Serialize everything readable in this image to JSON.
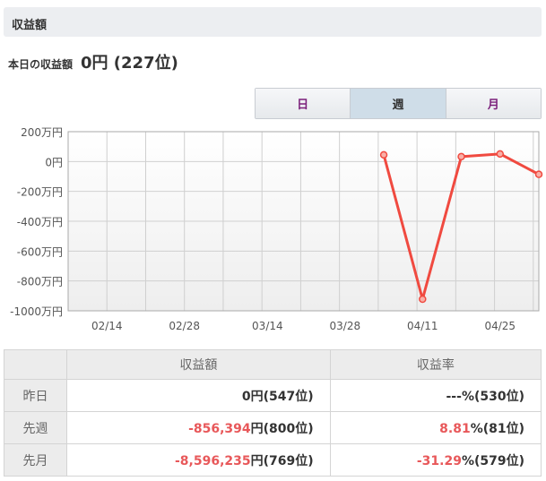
{
  "header": {
    "title": "収益額"
  },
  "today": {
    "label": "本日の収益額",
    "value": "0円 (227位)"
  },
  "tabs": [
    {
      "label": "日",
      "active": false
    },
    {
      "label": "週",
      "active": true
    },
    {
      "label": "月",
      "active": false
    }
  ],
  "chart_data": {
    "type": "line",
    "x_ticks": [
      "02/14",
      "02/28",
      "03/14",
      "03/28",
      "04/11",
      "04/25"
    ],
    "x_range": [
      "02/07",
      "05/02"
    ],
    "y_ticks": [
      "200万円",
      "0円",
      "-200万円",
      "-400万円",
      "-600万円",
      "-800万円",
      "-1000万円"
    ],
    "ylim": [
      -1000,
      200
    ],
    "y_unit": "万円",
    "grid": true,
    "line_color": "#f04a40",
    "points": [
      {
        "x": "04/04",
        "y": 45
      },
      {
        "x": "04/11",
        "y": -922
      },
      {
        "x": "04/18",
        "y": 33
      },
      {
        "x": "04/25",
        "y": 51
      },
      {
        "x": "05/02",
        "y": -86
      }
    ]
  },
  "table": {
    "headers": [
      "",
      "収益額",
      "収益率"
    ],
    "rows": [
      {
        "label": "昨日",
        "amount": "0",
        "amount_suffix": "円(547位)",
        "rate": "---",
        "rate_suffix": "%(530位)",
        "red": false
      },
      {
        "label": "先週",
        "amount": "-856,394",
        "amount_suffix": "円(800位)",
        "rate": "8.81",
        "rate_suffix": "%(81位)",
        "red": true
      },
      {
        "label": "先月",
        "amount": "-8,596,235",
        "amount_suffix": "円(769位)",
        "rate": "-31.29",
        "rate_suffix": "%(579位)",
        "red": true
      }
    ]
  }
}
